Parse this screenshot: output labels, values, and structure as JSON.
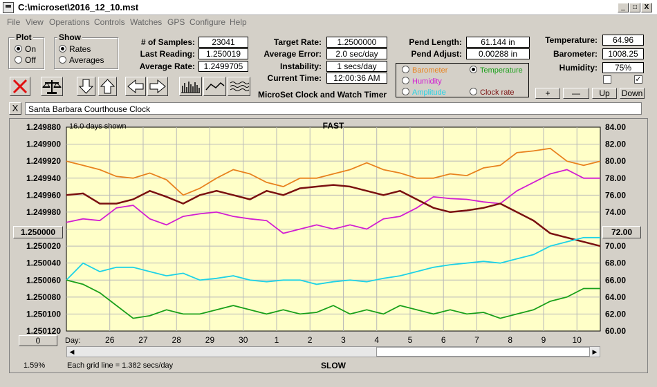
{
  "window": {
    "title": "C:\\microset\\2016_12_10.mst",
    "minimize": "_",
    "maximize": "□",
    "close": "X"
  },
  "menu": [
    "File",
    "View",
    "Operations",
    "Controls",
    "Watches",
    "GPS",
    "Configure",
    "Help"
  ],
  "plot_group": {
    "title": "Plot",
    "options": [
      {
        "label": "On",
        "selected": true
      },
      {
        "label": "Off",
        "selected": false
      }
    ]
  },
  "show_group": {
    "title": "Show",
    "options": [
      {
        "label": "Rates",
        "selected": true
      },
      {
        "label": "Averages",
        "selected": false
      }
    ]
  },
  "stats": {
    "samples_label": "# of Samples:",
    "samples": "23041",
    "last_reading_label": "Last Reading:",
    "last_reading": "1.250019",
    "average_rate_label": "Average Rate:",
    "average_rate": "1.2499705",
    "target_rate_label": "Target Rate:",
    "target_rate": "1.2500000",
    "average_error_label": "Average Error:",
    "average_error": "2.0 sec/day",
    "instability_label": "Instability:",
    "instability": "1 secs/day",
    "current_time_label": "Current Time:",
    "current_time": "12:00:36 AM",
    "pend_length_label": "Pend Length:",
    "pend_length": "61.144 in",
    "pend_adjust_label": "Pend Adjust:",
    "pend_adjust": "0.00288 in",
    "temperature_label": "Temperature:",
    "temperature": "64.96",
    "barometer_label": "Barometer:",
    "barometer": "1008.25",
    "humidity_label": "Humidity:",
    "humidity": "75%"
  },
  "program_title": "MicroSet Clock and Watch Timer",
  "sources": [
    {
      "label": "Barometer",
      "color": "#e8821e",
      "selected": false
    },
    {
      "label": "Temperature",
      "color": "#1aa01a",
      "selected": true
    },
    {
      "label": "Humidity",
      "color": "#d21ed2",
      "selected": false
    },
    {
      "label": "Amplitude",
      "color": "#1ed2e6",
      "selected": false
    },
    {
      "label": "Clock rate",
      "color": "#7a1010",
      "selected": false
    }
  ],
  "scale_buttons": {
    "plus": "+",
    "minus": "—",
    "up": "Up",
    "down": "Down"
  },
  "checkboxes": [
    {
      "checked": false,
      "mark": ""
    },
    {
      "checked": true,
      "mark": "✓"
    }
  ],
  "close_clock": "X",
  "clock_name": "Santa Barbara Courthouse Clock",
  "chart_data": {
    "type": "line",
    "days_shown": "16.0 days shown",
    "top_label": "FAST",
    "bottom_label": "SLOW",
    "grid_note": "Each grid line = 1.382 secs/day",
    "percent": "1.59%",
    "xlabel": "Day:",
    "left_ticks": [
      "1.249880",
      "1.249900",
      "1.249920",
      "1.249940",
      "1.249960",
      "1.249980",
      "1.250000",
      "1.250020",
      "1.250040",
      "1.250060",
      "1.250080",
      "1.250100",
      "1.250120"
    ],
    "left_center_button": "1.250000",
    "right_ticks": [
      "84.00",
      "82.00",
      "80.00",
      "78.00",
      "76.00",
      "74.00",
      "72.00",
      "70.00",
      "68.00",
      "66.00",
      "64.00",
      "62.00",
      "60.00"
    ],
    "right_center_button": "72.00",
    "left_bottom_button": "0",
    "x_ticks": [
      "26",
      "27",
      "28",
      "29",
      "30",
      "1",
      "2",
      "3",
      "4",
      "5",
      "6",
      "7",
      "8",
      "9",
      "10"
    ],
    "xlim": [
      0,
      16
    ],
    "y_right_lim": [
      60,
      84
    ],
    "series": [
      {
        "color": "#e8821e",
        "values": [
          [
            0,
            80.0
          ],
          [
            0.5,
            79.5
          ],
          [
            1,
            79.0
          ],
          [
            1.5,
            78.2
          ],
          [
            2,
            78.0
          ],
          [
            2.5,
            78.6
          ],
          [
            3,
            77.8
          ],
          [
            3.5,
            76.0
          ],
          [
            4,
            76.8
          ],
          [
            4.5,
            78.0
          ],
          [
            5,
            79.0
          ],
          [
            5.5,
            78.5
          ],
          [
            6,
            77.5
          ],
          [
            6.5,
            77.0
          ],
          [
            7,
            78.0
          ],
          [
            7.5,
            78.0
          ],
          [
            8,
            78.5
          ],
          [
            8.5,
            79.0
          ],
          [
            9,
            79.8
          ],
          [
            9.5,
            79.0
          ],
          [
            10,
            78.6
          ],
          [
            10.5,
            78.0
          ],
          [
            11,
            78.0
          ],
          [
            11.5,
            78.5
          ],
          [
            12,
            78.3
          ],
          [
            12.5,
            79.2
          ],
          [
            13,
            79.5
          ],
          [
            13.5,
            81.0
          ],
          [
            14,
            81.2
          ],
          [
            14.5,
            81.5
          ],
          [
            15,
            80.0
          ],
          [
            15.5,
            79.5
          ],
          [
            16,
            80.0
          ]
        ]
      },
      {
        "color": "#d21ed2",
        "values": [
          [
            0,
            72.8
          ],
          [
            0.5,
            73.2
          ],
          [
            1,
            73.0
          ],
          [
            1.5,
            74.5
          ],
          [
            2,
            74.8
          ],
          [
            2.5,
            73.2
          ],
          [
            3,
            72.5
          ],
          [
            3.5,
            73.5
          ],
          [
            4,
            73.8
          ],
          [
            4.5,
            74.0
          ],
          [
            5,
            73.5
          ],
          [
            5.5,
            73.2
          ],
          [
            6,
            73.0
          ],
          [
            6.5,
            71.5
          ],
          [
            7,
            72.0
          ],
          [
            7.5,
            72.5
          ],
          [
            8,
            72.0
          ],
          [
            8.5,
            72.5
          ],
          [
            9,
            72.0
          ],
          [
            9.5,
            73.2
          ],
          [
            10,
            73.5
          ],
          [
            10.5,
            74.5
          ],
          [
            11,
            75.8
          ],
          [
            11.5,
            75.6
          ],
          [
            12,
            75.5
          ],
          [
            12.5,
            75.2
          ],
          [
            13,
            75.0
          ],
          [
            13.5,
            76.5
          ],
          [
            14,
            77.5
          ],
          [
            14.5,
            78.5
          ],
          [
            15,
            79.0
          ],
          [
            15.5,
            78.0
          ],
          [
            16,
            78.0
          ]
        ]
      },
      {
        "color": "#7a1010",
        "values": [
          [
            0,
            76.0
          ],
          [
            0.5,
            76.2
          ],
          [
            1,
            75.0
          ],
          [
            1.5,
            75.0
          ],
          [
            2,
            75.5
          ],
          [
            2.5,
            76.5
          ],
          [
            3,
            75.8
          ],
          [
            3.5,
            75.0
          ],
          [
            4,
            76.0
          ],
          [
            4.5,
            76.5
          ],
          [
            5,
            76.0
          ],
          [
            5.5,
            75.5
          ],
          [
            6,
            76.5
          ],
          [
            6.5,
            76.0
          ],
          [
            7,
            76.8
          ],
          [
            7.5,
            77.0
          ],
          [
            8,
            77.2
          ],
          [
            8.5,
            77.0
          ],
          [
            9,
            76.5
          ],
          [
            9.5,
            76.0
          ],
          [
            10,
            76.5
          ],
          [
            10.5,
            75.5
          ],
          [
            11,
            74.5
          ],
          [
            11.5,
            74.0
          ],
          [
            12,
            74.2
          ],
          [
            12.5,
            74.5
          ],
          [
            13,
            75.0
          ],
          [
            13.5,
            74.0
          ],
          [
            14,
            73.0
          ],
          [
            14.5,
            71.5
          ],
          [
            15,
            71.0
          ],
          [
            15.5,
            70.5
          ],
          [
            16,
            70.0
          ]
        ]
      },
      {
        "color": "#1ed2e6",
        "values": [
          [
            0,
            66.0
          ],
          [
            0.5,
            68.0
          ],
          [
            1,
            67.0
          ],
          [
            1.5,
            67.5
          ],
          [
            2,
            67.5
          ],
          [
            2.5,
            67.0
          ],
          [
            3,
            66.5
          ],
          [
            3.5,
            66.8
          ],
          [
            4,
            66.0
          ],
          [
            4.5,
            66.2
          ],
          [
            5,
            66.5
          ],
          [
            5.5,
            66.0
          ],
          [
            6,
            65.8
          ],
          [
            6.5,
            66.0
          ],
          [
            7,
            66.0
          ],
          [
            7.5,
            65.5
          ],
          [
            8,
            65.8
          ],
          [
            8.5,
            66.0
          ],
          [
            9,
            65.8
          ],
          [
            9.5,
            66.2
          ],
          [
            10,
            66.5
          ],
          [
            10.5,
            67.0
          ],
          [
            11,
            67.5
          ],
          [
            11.5,
            67.8
          ],
          [
            12,
            68.0
          ],
          [
            12.5,
            68.2
          ],
          [
            13,
            68.0
          ],
          [
            13.5,
            68.5
          ],
          [
            14,
            69.0
          ],
          [
            14.5,
            70.0
          ],
          [
            15,
            70.5
          ],
          [
            15.5,
            71.0
          ],
          [
            16,
            71.0
          ]
        ]
      },
      {
        "color": "#1aa01a",
        "values": [
          [
            0,
            66.0
          ],
          [
            0.5,
            65.5
          ],
          [
            1,
            64.5
          ],
          [
            1.5,
            63.0
          ],
          [
            2,
            61.5
          ],
          [
            2.5,
            61.8
          ],
          [
            3,
            62.5
          ],
          [
            3.5,
            62.0
          ],
          [
            4,
            62.0
          ],
          [
            4.5,
            62.5
          ],
          [
            5,
            63.0
          ],
          [
            5.5,
            62.5
          ],
          [
            6,
            62.0
          ],
          [
            6.5,
            62.5
          ],
          [
            7,
            62.0
          ],
          [
            7.5,
            62.2
          ],
          [
            8,
            63.0
          ],
          [
            8.5,
            62.0
          ],
          [
            9,
            62.5
          ],
          [
            9.5,
            62.0
          ],
          [
            10,
            63.0
          ],
          [
            10.5,
            62.5
          ],
          [
            11,
            62.0
          ],
          [
            11.5,
            62.5
          ],
          [
            12,
            62.0
          ],
          [
            12.5,
            62.2
          ],
          [
            13,
            61.5
          ],
          [
            13.5,
            62.0
          ],
          [
            14,
            62.5
          ],
          [
            14.5,
            63.5
          ],
          [
            15,
            64.0
          ],
          [
            15.5,
            65.0
          ],
          [
            16,
            65.0
          ]
        ]
      }
    ]
  }
}
